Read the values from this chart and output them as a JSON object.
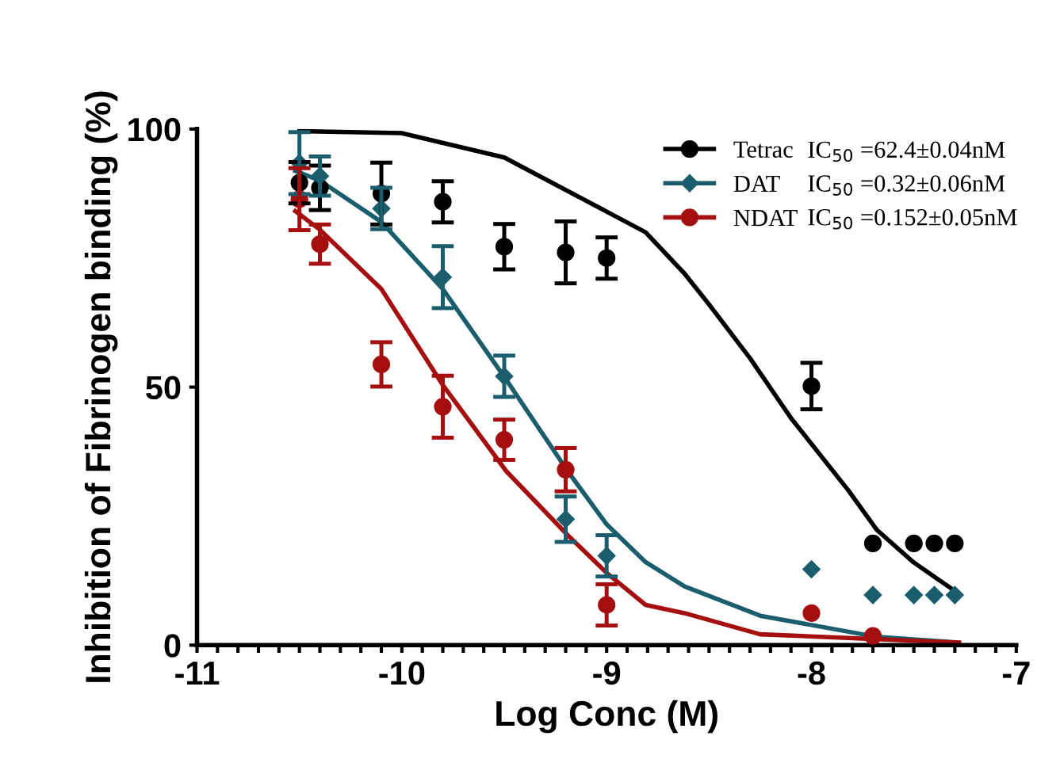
{
  "chart_data": {
    "type": "scatter",
    "xlabel": "Log Conc (M)",
    "ylabel": "Inhibition of Fibrinogen binding (%)",
    "xlim": [
      -11,
      -7
    ],
    "ylim": [
      0,
      100
    ],
    "yticks": [
      0,
      50,
      100
    ],
    "xticks": [
      -11,
      {
        "value": -10.9,
        "label": null
      },
      {
        "value": -10.8,
        "label": null
      },
      {
        "value": -10.7,
        "label": null
      },
      {
        "value": -10.6,
        "label": null
      },
      {
        "value": -10.5,
        "label": null
      },
      {
        "value": -10.4,
        "label": null
      },
      {
        "value": -10.3,
        "label": null
      },
      {
        "value": -10.2,
        "label": null
      },
      {
        "value": -10.1,
        "label": null
      },
      -10,
      {
        "value": -9.9,
        "label": null
      },
      {
        "value": -9.8,
        "label": null
      },
      {
        "value": -9.7,
        "label": null
      },
      {
        "value": -9.6,
        "label": null
      },
      {
        "value": -9.5,
        "label": null
      },
      {
        "value": -9.4,
        "label": null
      },
      {
        "value": -9.3,
        "label": null
      },
      {
        "value": -9.2,
        "label": null
      },
      {
        "value": -9.1,
        "label": null
      },
      -9,
      {
        "value": -8.9,
        "label": null
      },
      {
        "value": -8.8,
        "label": null
      },
      {
        "value": -8.7,
        "label": null
      },
      {
        "value": -8.6,
        "label": null
      },
      {
        "value": -8.5,
        "label": null
      },
      {
        "value": -8.4,
        "label": null
      },
      {
        "value": -8.3,
        "label": null
      },
      {
        "value": -8.2,
        "label": null
      },
      {
        "value": -8.1,
        "label": null
      },
      -8,
      {
        "value": -7.9,
        "label": null
      },
      {
        "value": -7.8,
        "label": null
      },
      {
        "value": -7.7,
        "label": null
      },
      {
        "value": -7.6,
        "label": null
      },
      {
        "value": -7.5,
        "label": null
      },
      {
        "value": -7.4,
        "label": null
      },
      {
        "value": -7.3,
        "label": null
      },
      {
        "value": -7.2,
        "label": null
      },
      {
        "value": -7.1,
        "label": null
      },
      -7
    ],
    "grid": false,
    "legend": "top right",
    "annotations": [
      "IC$_{50}$ =62.4±0.04nM",
      "IC$_{50}$ =0.32±0.06nM",
      "IC$_{50}$ =0.152±0.05nM"
    ],
    "series": [
      {
        "name": "Tetrac",
        "marker": "circle",
        "color": "#000000",
        "x": [
          -10.5,
          -10.4,
          -10.1,
          -9.8,
          -9.5,
          -9.2,
          -9,
          -8,
          -7.7,
          -7.5,
          -7.4,
          -7.3
        ],
        "values": [
          89.6,
          88.6,
          87.5,
          85.9,
          77.2,
          76.1,
          75.0,
          50.2,
          19.7,
          19.7,
          19.7,
          19.7
        ],
        "errors": [
          4,
          4.3,
          6,
          4,
          4.4,
          6,
          4,
          4.5,
          null,
          null,
          null,
          null
        ]
      },
      {
        "name": "DAT",
        "marker": "diamond",
        "color": "#1a5e6e",
        "x": [
          -10.5,
          -10.4,
          -10.1,
          -9.8,
          -9.5,
          -9.2,
          -9,
          -8,
          -7.7,
          -7.5,
          -7.4,
          -7.3
        ],
        "values": [
          93.4,
          90.9,
          84.6,
          71.3,
          52.1,
          24.4,
          17.3,
          14.7,
          9.7,
          9.7,
          9.7,
          9.7
        ],
        "errors": [
          6,
          3.8,
          4,
          6,
          4,
          4.4,
          4,
          null,
          null,
          null,
          null,
          null
        ]
      },
      {
        "name": "NDAT",
        "marker": "circle",
        "color": "#a50f0f",
        "x": [
          -10.5,
          -10.4,
          -10.1,
          -9.8,
          -9.5,
          -9.2,
          -9,
          -8,
          -7.7
        ],
        "values": [
          86.4,
          77.7,
          54.4,
          46.2,
          39.8,
          34.0,
          7.8,
          6.2,
          1.8
        ],
        "errors": [
          6,
          3.8,
          4.3,
          6,
          3.9,
          4.2,
          4,
          null,
          null
        ]
      },
      {
        "type": "line",
        "marker": "none",
        "line_style": "solid",
        "color": "#000000",
        "x": [
          -10.5,
          -10,
          -9.5,
          -9,
          -8.81,
          -8.62,
          -8.5,
          -8.3,
          -8.1,
          -8,
          -7.82,
          -7.68,
          -7.5,
          -7.3
        ],
        "values": [
          99.6,
          99.2,
          94.5,
          84,
          80,
          72,
          66,
          55.6,
          44,
          39,
          30,
          22.3,
          16,
          10.5
        ]
      },
      {
        "type": "line",
        "marker": "none",
        "line_style": "solid",
        "color": "#1a5e6e",
        "x": [
          -10.52,
          -10.4,
          -10.1,
          -9.8,
          -9.49,
          -9.19,
          -9,
          -8.81,
          -8.62,
          -8.25,
          -7.68,
          -7.28
        ],
        "values": [
          91.9,
          90,
          82,
          69,
          51.4,
          33.7,
          23.4,
          16.1,
          11.4,
          5.7,
          1.6,
          0.5
        ]
      },
      {
        "type": "line",
        "marker": "none",
        "line_style": "solid",
        "color": "#a50f0f",
        "x": [
          -10.52,
          -10.4,
          -10.1,
          -9.8,
          -9.49,
          -9.19,
          -9,
          -8.81,
          -8.62,
          -8.25,
          -7.28
        ],
        "values": [
          84.1,
          80.5,
          69,
          50.4,
          33.7,
          21.3,
          14,
          7.8,
          6.2,
          2.1,
          0.5
        ]
      }
    ]
  }
}
